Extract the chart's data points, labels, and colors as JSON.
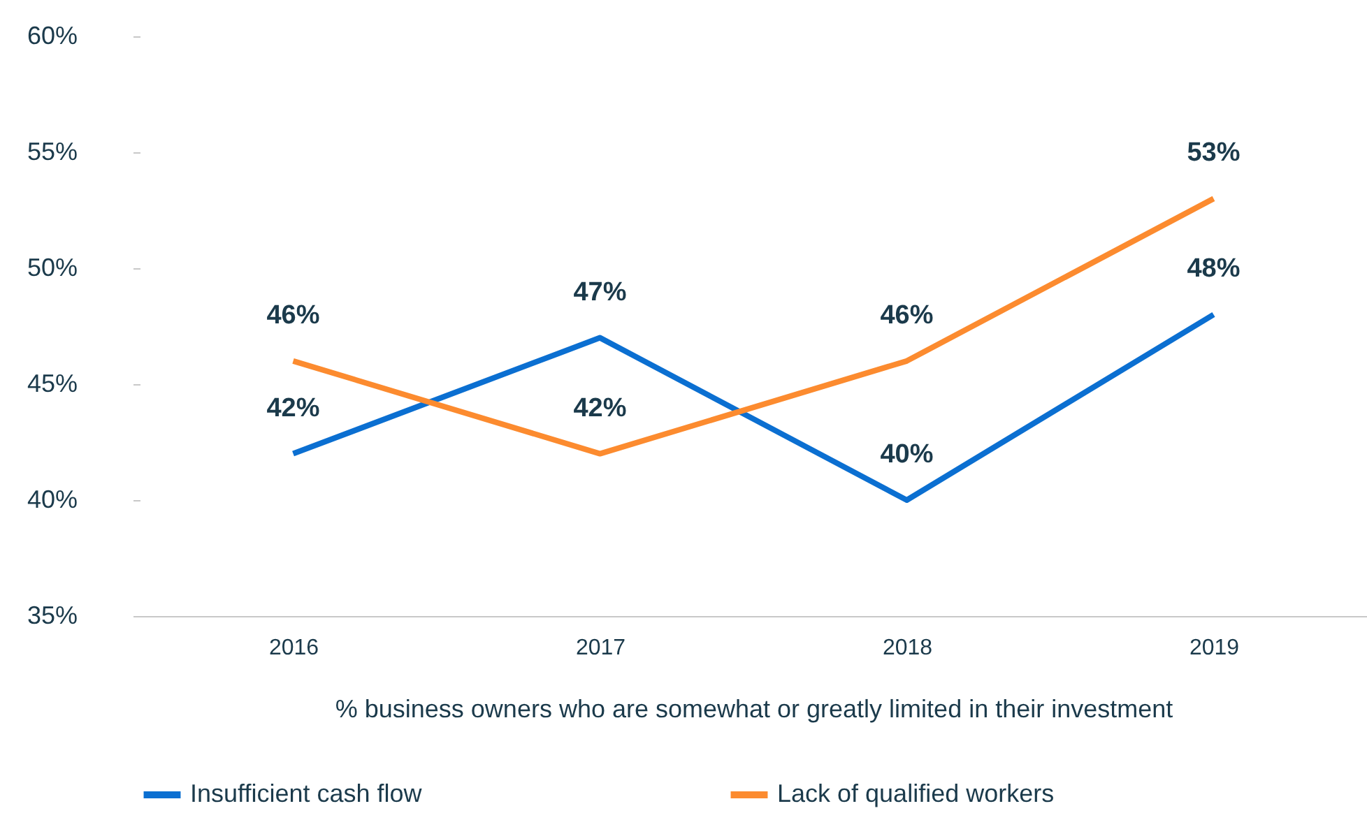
{
  "chart_data": {
    "type": "line",
    "xlabel": "% business owners who are somewhat or greatly limited in their investment",
    "categories": [
      "2016",
      "2017",
      "2018",
      "2019"
    ],
    "series": [
      {
        "name": "Insufficient cash flow",
        "color": "#0b6fd1",
        "values": [
          42,
          47,
          40,
          48
        ],
        "value_labels": [
          "42%",
          "47%",
          "40%",
          "48%"
        ]
      },
      {
        "name": "Lack of qualified workers",
        "color": "#fc8b2f",
        "values": [
          46,
          42,
          46,
          53
        ],
        "value_labels": [
          "46%",
          "42%",
          "46%",
          "53%"
        ]
      }
    ],
    "ylim": [
      35,
      60
    ],
    "yticks": [
      {
        "value": 35,
        "label": "35%"
      },
      {
        "value": 40,
        "label": "40%"
      },
      {
        "value": 45,
        "label": "45%"
      },
      {
        "value": 50,
        "label": "50%"
      },
      {
        "value": 55,
        "label": "55%"
      },
      {
        "value": 60,
        "label": "60%"
      }
    ],
    "grid": false,
    "legend": "bottom"
  }
}
